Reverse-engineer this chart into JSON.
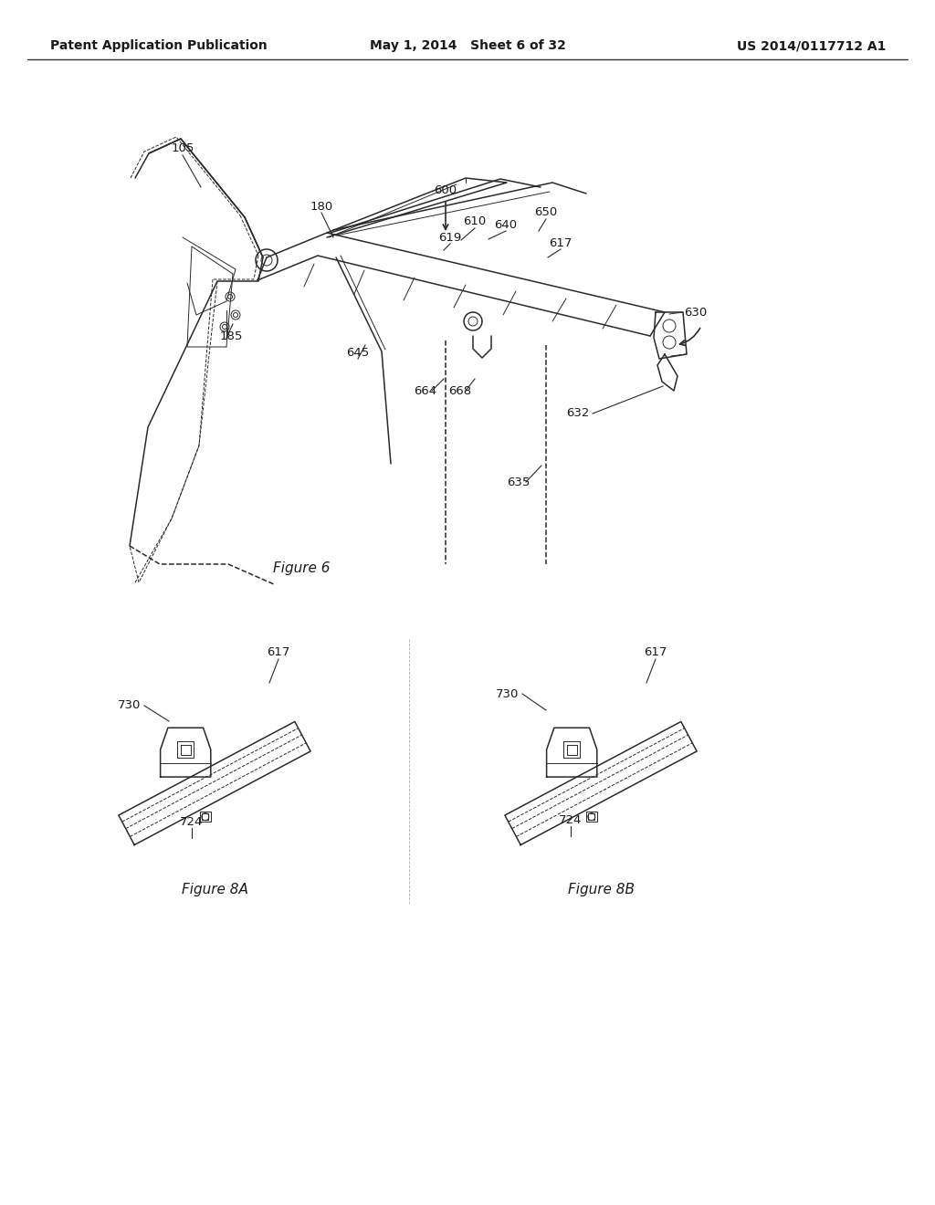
{
  "background_color": "#ffffff",
  "header_left": "Patent Application Publication",
  "header_center": "May 1, 2014   Sheet 6 of 32",
  "header_right": "US 2014/0117712 A1",
  "line_color": "#2a2a2a",
  "label_color": "#1a1a1a",
  "fig6_caption": "Figure 6",
  "fig8a_caption": "Figure 8A",
  "fig8b_caption": "Figure 8B"
}
